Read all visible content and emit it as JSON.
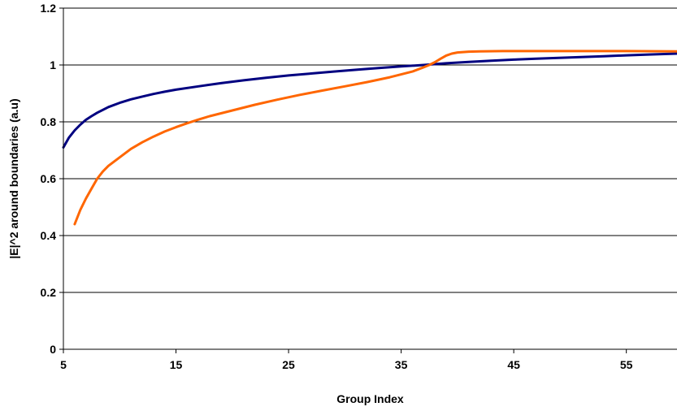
{
  "chart_data": {
    "type": "line",
    "title": "",
    "xlabel": "Group Index",
    "ylabel": "|E|^2 around boundaries (a.u)",
    "xlim": [
      5,
      59.5
    ],
    "ylim": [
      0,
      1.2
    ],
    "x_ticks": [
      5,
      15,
      25,
      35,
      45,
      55
    ],
    "y_ticks": [
      0,
      0.2,
      0.4,
      0.6,
      0.8,
      1,
      1.2
    ],
    "y_tick_labels": [
      "0",
      "0.2",
      "0.4",
      "0.6",
      "0.8",
      "1",
      "1.2"
    ],
    "grid": "horizontal",
    "legend": "none",
    "series": [
      {
        "color": "#000080",
        "x": [
          5,
          5.5,
          6,
          6.5,
          7,
          7.5,
          8,
          9,
          10,
          11,
          12,
          13,
          14,
          15,
          17,
          19,
          21,
          23,
          25,
          27,
          29,
          31,
          33,
          35,
          37,
          39,
          41,
          43,
          45,
          47,
          49,
          51,
          53,
          55,
          57,
          59.5
        ],
        "y": [
          0.71,
          0.745,
          0.77,
          0.79,
          0.807,
          0.82,
          0.832,
          0.852,
          0.867,
          0.879,
          0.889,
          0.898,
          0.906,
          0.913,
          0.925,
          0.936,
          0.946,
          0.955,
          0.963,
          0.97,
          0.977,
          0.983,
          0.989,
          0.995,
          1.0,
          1.006,
          1.011,
          1.015,
          1.019,
          1.022,
          1.025,
          1.028,
          1.031,
          1.034,
          1.037,
          1.04
        ]
      },
      {
        "color": "#ff6600",
        "x": [
          6,
          6.5,
          7,
          7.5,
          8,
          8.5,
          9,
          10,
          11,
          12,
          13,
          14,
          15,
          16,
          17,
          18,
          20,
          22,
          24,
          26,
          28,
          30,
          32,
          34,
          35,
          36,
          37,
          37.5,
          38,
          38.5,
          39,
          39.5,
          40,
          41,
          42,
          44,
          46,
          50,
          55,
          59.5
        ],
        "y": [
          0.44,
          0.49,
          0.53,
          0.565,
          0.6,
          0.625,
          0.645,
          0.675,
          0.705,
          0.728,
          0.748,
          0.766,
          0.781,
          0.795,
          0.808,
          0.82,
          0.84,
          0.86,
          0.878,
          0.895,
          0.91,
          0.925,
          0.94,
          0.957,
          0.967,
          0.977,
          0.992,
          1.0,
          1.01,
          1.022,
          1.033,
          1.04,
          1.044,
          1.047,
          1.048,
          1.049,
          1.049,
          1.049,
          1.049,
          1.048
        ]
      }
    ]
  }
}
